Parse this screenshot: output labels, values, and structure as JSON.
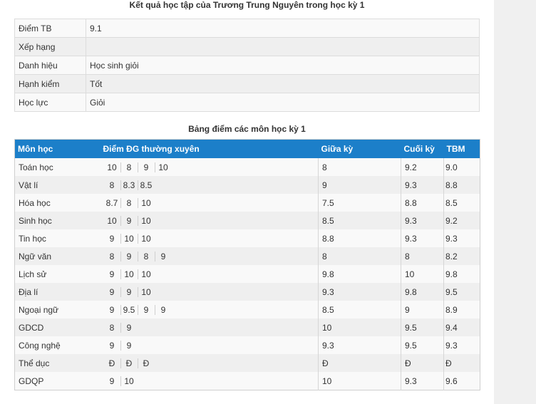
{
  "summary": {
    "title": "Kết quả học tập của Trương Trung Nguyên trong học kỳ 1",
    "rows": [
      {
        "label": "Điểm TB",
        "value": "9.1"
      },
      {
        "label": "Xếp hạng",
        "value": ""
      },
      {
        "label": "Danh hiệu",
        "value": "Học sinh giỏi"
      },
      {
        "label": "Hạnh kiểm",
        "value": "Tốt"
      },
      {
        "label": "Học lực",
        "value": "Giỏi"
      }
    ]
  },
  "grades": {
    "title": "Bảng điểm các môn học kỳ 1",
    "headers": {
      "subject": "Môn học",
      "regular": "Điểm ĐG thường xuyên",
      "midterm": "Giữa kỳ",
      "final": "Cuối kỳ",
      "avg": "TBM"
    },
    "rows": [
      {
        "subject": "Toán học",
        "regular": [
          "10",
          "8",
          "9",
          "10"
        ],
        "midterm": "8",
        "final": "9.2",
        "avg": "9.0"
      },
      {
        "subject": "Vật lí",
        "regular": [
          "8",
          "8.3",
          "8.5"
        ],
        "midterm": "9",
        "final": "9.3",
        "avg": "8.8"
      },
      {
        "subject": "Hóa học",
        "regular": [
          "8.7",
          "8",
          "10"
        ],
        "midterm": "7.5",
        "final": "8.8",
        "avg": "8.5"
      },
      {
        "subject": "Sinh học",
        "regular": [
          "10",
          "9",
          "10"
        ],
        "midterm": "8.5",
        "final": "9.3",
        "avg": "9.2"
      },
      {
        "subject": "Tin học",
        "regular": [
          "9",
          "10",
          "10"
        ],
        "midterm": "8.8",
        "final": "9.3",
        "avg": "9.3"
      },
      {
        "subject": "Ngữ văn",
        "regular": [
          "8",
          "9",
          "8",
          "9"
        ],
        "midterm": "8",
        "final": "8",
        "avg": "8.2"
      },
      {
        "subject": "Lịch sử",
        "regular": [
          "9",
          "10",
          "10"
        ],
        "midterm": "9.8",
        "final": "10",
        "avg": "9.8"
      },
      {
        "subject": "Địa lí",
        "regular": [
          "9",
          "9",
          "10"
        ],
        "midterm": "9.3",
        "final": "9.8",
        "avg": "9.5"
      },
      {
        "subject": "Ngoại ngữ",
        "regular": [
          "9",
          "9.5",
          "9",
          "9"
        ],
        "midterm": "8.5",
        "final": "9",
        "avg": "8.9"
      },
      {
        "subject": "GDCD",
        "regular": [
          "8",
          "9"
        ],
        "midterm": "10",
        "final": "9.5",
        "avg": "9.4"
      },
      {
        "subject": "Công nghệ",
        "regular": [
          "9",
          "9"
        ],
        "midterm": "9.3",
        "final": "9.5",
        "avg": "9.3"
      },
      {
        "subject": "Thể dục",
        "regular": [
          "Đ",
          "Đ",
          "Đ"
        ],
        "midterm": "Đ",
        "final": "Đ",
        "avg": "Đ"
      },
      {
        "subject": "GDQP",
        "regular": [
          "9",
          "10"
        ],
        "midterm": "10",
        "final": "9.3",
        "avg": "9.6"
      }
    ]
  }
}
